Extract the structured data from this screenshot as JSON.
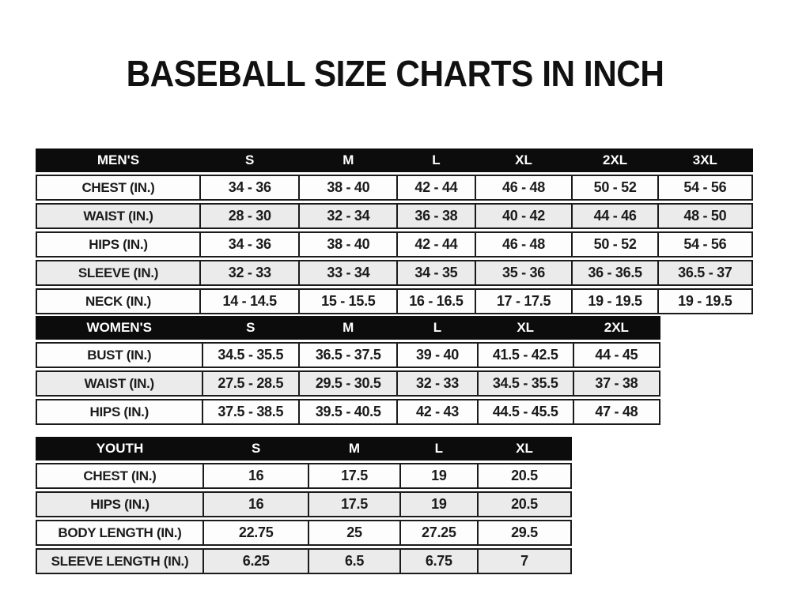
{
  "page": {
    "title": "BASEBALL SIZE CHARTS IN INCH"
  },
  "colors": {
    "page_bg": "#ffffff",
    "header_bg": "#0c0c0c",
    "header_text": "#ffffff",
    "row_bg": "#fdfdfd",
    "row_alt_bg": "#ebebeb",
    "border": "#1b1b1b",
    "text": "#1b1b1b"
  },
  "tables": {
    "mens": {
      "name": "MEN'S",
      "columns": [
        "S",
        "M",
        "L",
        "XL",
        "2XL",
        "3XL"
      ],
      "rows": [
        {
          "label": "CHEST (IN.)",
          "values": [
            "34 - 36",
            "38 - 40",
            "42 - 44",
            "46 - 48",
            "50 - 52",
            "54 - 56"
          ]
        },
        {
          "label": "WAIST (IN.)",
          "values": [
            "28 - 30",
            "32 - 34",
            "36 - 38",
            "40 - 42",
            "44 - 46",
            "48 - 50"
          ]
        },
        {
          "label": "HIPS (IN.)",
          "values": [
            "34 - 36",
            "38 - 40",
            "42 - 44",
            "46 - 48",
            "50 - 52",
            "54 - 56"
          ]
        },
        {
          "label": "SLEEVE (IN.)",
          "values": [
            "32 - 33",
            "33 - 34",
            "34 - 35",
            "35 - 36",
            "36 - 36.5",
            "36.5 - 37"
          ]
        },
        {
          "label": "NECK (IN.)",
          "values": [
            "14 - 14.5",
            "15 - 15.5",
            "16 - 16.5",
            "17 - 17.5",
            "19 - 19.5",
            "19 - 19.5"
          ]
        }
      ]
    },
    "womens": {
      "name": "WOMEN'S",
      "columns": [
        "S",
        "M",
        "L",
        "XL",
        "2XL"
      ],
      "rows": [
        {
          "label": "BUST (IN.)",
          "values": [
            "34.5 - 35.5",
            "36.5 - 37.5",
            "39 - 40",
            "41.5 - 42.5",
            "44 - 45"
          ]
        },
        {
          "label": "WAIST (IN.)",
          "values": [
            "27.5 - 28.5",
            "29.5 - 30.5",
            "32 - 33",
            "34.5 - 35.5",
            "37 - 38"
          ]
        },
        {
          "label": "HIPS (IN.)",
          "values": [
            "37.5 - 38.5",
            "39.5 - 40.5",
            "42 - 43",
            "44.5 - 45.5",
            "47 - 48"
          ]
        }
      ]
    },
    "youth": {
      "name": "YOUTH",
      "columns": [
        "S",
        "M",
        "L",
        "XL"
      ],
      "rows": [
        {
          "label": "CHEST (IN.)",
          "values": [
            "16",
            "17.5",
            "19",
            "20.5"
          ]
        },
        {
          "label": "HIPS (IN.)",
          "values": [
            "16",
            "17.5",
            "19",
            "20.5"
          ]
        },
        {
          "label": "BODY LENGTH (IN.)",
          "values": [
            "22.75",
            "25",
            "27.25",
            "29.5"
          ]
        },
        {
          "label": "SLEEVE LENGTH (IN.)",
          "values": [
            "6.25",
            "6.5",
            "6.75",
            "7"
          ]
        }
      ]
    }
  }
}
